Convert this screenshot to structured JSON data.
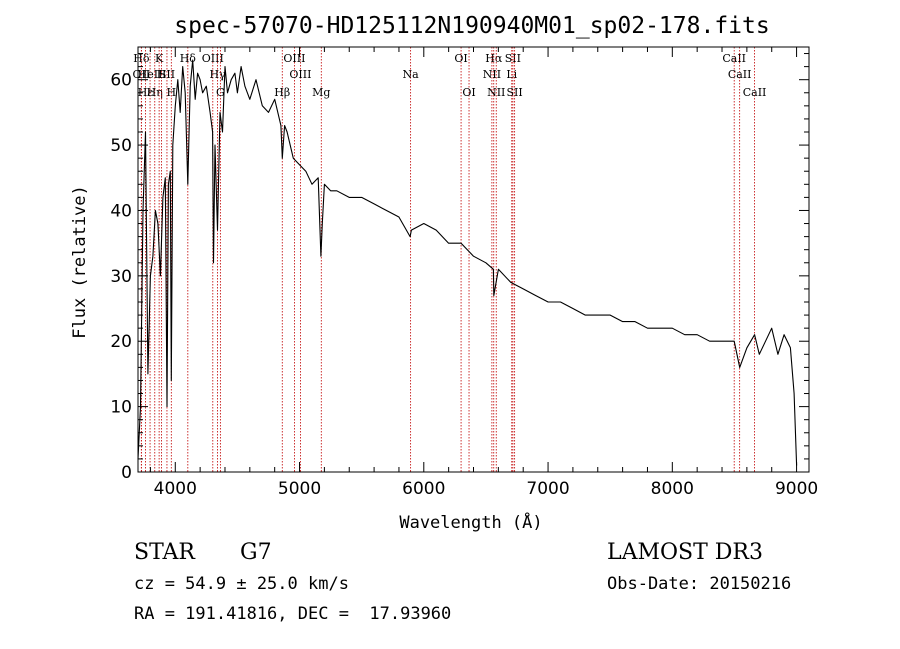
{
  "chart_data": {
    "type": "line",
    "title": "spec-57070-HD125112N190940M01_sp02-178.fits",
    "xlabel": "Wavelength (Å)",
    "ylabel": "Flux (relative)",
    "xlim": [
      3700,
      9100
    ],
    "ylim": [
      0,
      65
    ],
    "xticks": [
      4000,
      5000,
      6000,
      7000,
      8000,
      9000
    ],
    "yticks": [
      0,
      10,
      20,
      30,
      40,
      50,
      60
    ],
    "grid": false,
    "line_color": "#000000",
    "marker_color": "#c00000",
    "series": [
      {
        "name": "flux",
        "x": [
          3700,
          3720,
          3740,
          3760,
          3780,
          3800,
          3820,
          3840,
          3860,
          3880,
          3900,
          3920,
          3933,
          3945,
          3960,
          3968,
          3980,
          4000,
          4020,
          4040,
          4060,
          4080,
          4101,
          4120,
          4140,
          4160,
          4180,
          4200,
          4220,
          4250,
          4280,
          4300,
          4308,
          4320,
          4340,
          4360,
          4380,
          4400,
          4420,
          4450,
          4480,
          4500,
          4530,
          4560,
          4600,
          4650,
          4700,
          4750,
          4800,
          4850,
          4861,
          4880,
          4900,
          4950,
          5000,
          5050,
          5100,
          5150,
          5172,
          5183,
          5200,
          5250,
          5300,
          5400,
          5500,
          5600,
          5700,
          5800,
          5890,
          5900,
          6000,
          6100,
          6200,
          6300,
          6400,
          6500,
          6560,
          6563,
          6600,
          6700,
          6800,
          6900,
          7000,
          7100,
          7200,
          7300,
          7400,
          7500,
          7600,
          7700,
          7800,
          7900,
          8000,
          8100,
          8200,
          8300,
          8400,
          8498,
          8542,
          8600,
          8662,
          8700,
          8800,
          8850,
          8900,
          8950,
          8980,
          9000
        ],
        "y": [
          2,
          10,
          40,
          52,
          15,
          30,
          33,
          40,
          38,
          30,
          42,
          45,
          10,
          44,
          46,
          14,
          50,
          56,
          60,
          55,
          62,
          58,
          44,
          59,
          63,
          57,
          61,
          60,
          58,
          59,
          55,
          52,
          32,
          50,
          37,
          55,
          52,
          62,
          58,
          60,
          61,
          58,
          62,
          59,
          57,
          60,
          56,
          55,
          57,
          53,
          48,
          53,
          52,
          48,
          47,
          46,
          44,
          45,
          33,
          38,
          44,
          43,
          43,
          42,
          42,
          41,
          40,
          39,
          36,
          37,
          38,
          37,
          35,
          35,
          33,
          32,
          31,
          27,
          31,
          29,
          28,
          27,
          26,
          26,
          25,
          24,
          24,
          24,
          23,
          23,
          22,
          22,
          22,
          21,
          21,
          20,
          20,
          20,
          16,
          19,
          21,
          18,
          22,
          18,
          21,
          19,
          12,
          1
        ]
      }
    ],
    "line_markers": [
      {
        "label": "Hδ",
        "wavelength": 3727,
        "row": 1
      },
      {
        "label": "OII",
        "wavelength": 3727,
        "row": 2
      },
      {
        "label": "Hε",
        "wavelength": 3760,
        "row": 3
      },
      {
        "label": "HeII",
        "wavelength": 3797,
        "row": 2
      },
      {
        "label": "Hη",
        "wavelength": 3835,
        "row": 3
      },
      {
        "label": "K",
        "wavelength": 3870,
        "row": 1
      },
      {
        "label": "H",
        "wavelength": 3889,
        "row": 2
      },
      {
        "label": "SII",
        "wavelength": 3933,
        "row": 2
      },
      {
        "label": "H",
        "wavelength": 3968,
        "row": 3
      },
      {
        "label": "Hδ",
        "wavelength": 4101,
        "row": 1
      },
      {
        "label": "OIII",
        "wavelength": 4302,
        "row": 1
      },
      {
        "label": "Hγ",
        "wavelength": 4340,
        "row": 2
      },
      {
        "label": "G",
        "wavelength": 4363,
        "row": 3
      },
      {
        "label": "Hβ",
        "wavelength": 4861,
        "row": 3
      },
      {
        "label": "OIII",
        "wavelength": 4959,
        "row": 1
      },
      {
        "label": "OIII",
        "wavelength": 5007,
        "row": 2
      },
      {
        "label": "Mg",
        "wavelength": 5175,
        "row": 3
      },
      {
        "label": "Na",
        "wavelength": 5894,
        "row": 2
      },
      {
        "label": "OI",
        "wavelength": 6300,
        "row": 1
      },
      {
        "label": "OI",
        "wavelength": 6364,
        "row": 3
      },
      {
        "label": "Hα",
        "wavelength": 6563,
        "row": 1
      },
      {
        "label": "NII",
        "wavelength": 6548,
        "row": 2
      },
      {
        "label": "NII",
        "wavelength": 6583,
        "row": 3
      },
      {
        "label": "Li",
        "wavelength": 6708,
        "row": 2
      },
      {
        "label": "SII",
        "wavelength": 6717,
        "row": 1
      },
      {
        "label": "SII",
        "wavelength": 6731,
        "row": 3
      },
      {
        "label": "CaII",
        "wavelength": 8498,
        "row": 1
      },
      {
        "label": "CaII",
        "wavelength": 8542,
        "row": 2
      },
      {
        "label": "CaII",
        "wavelength": 8662,
        "row": 3
      }
    ]
  },
  "info": {
    "class_label": "STAR",
    "subclass": "G7",
    "survey": "LAMOST DR3",
    "cz_text": "cz = 54.9 ± 25.0 km/s",
    "obs_date": "Obs-Date: 20150216",
    "coords": "RA = 191.41816, DEC =  17.93960"
  }
}
